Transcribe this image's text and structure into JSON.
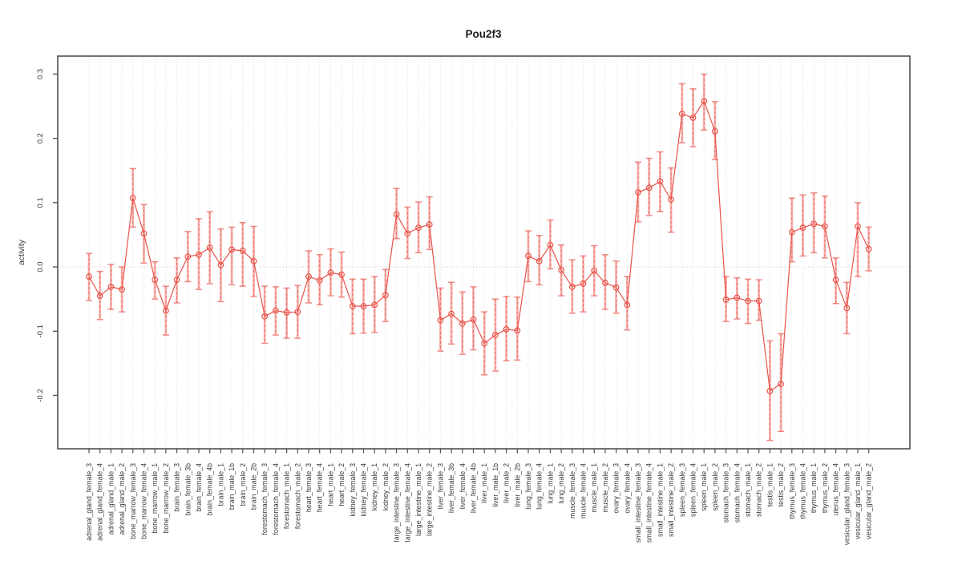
{
  "chart_data": {
    "type": "line",
    "title": "Pou2f3",
    "xlabel": "",
    "ylabel": "activity",
    "legend": "none",
    "grid": "vertical-dotted-per-category",
    "zero_line": true,
    "point_marker": "open-circle",
    "error_bars": true,
    "x_tick_rotation": 90,
    "ylim": [
      -0.283,
      0.328
    ],
    "ytick_values": [
      0.3,
      0.2,
      0.1,
      0.0,
      -0.1,
      -0.2
    ],
    "ytick_labels": [
      "0.3",
      "0.2",
      "0.1",
      "0.0",
      "-0.1",
      "-0.2"
    ],
    "colors": {
      "series": "#e8534a",
      "error_bar_fill": "#f6a9a4",
      "error_bar_cap": "#ef8a84",
      "grid": "#dbdbdb",
      "zero_line": "#c9c9c9",
      "axis": "#4f4f4f",
      "text": "#3c3c3c"
    },
    "categories": [
      "adrenal_gland_female_3",
      "adrenal_gland_female_4",
      "adrenal_gland_male_1",
      "adrenal_gland_male_2",
      "bone_marrow_female_3",
      "bone_marrow_female_4",
      "bone_marrow_male_1",
      "bone_marrow_male_2",
      "brain_female_3",
      "brain_female_3b",
      "brain_female_4",
      "brain_female_4b",
      "brain_male_1",
      "brain_male_1b",
      "brain_male_2",
      "brain_male_2b",
      "forestomach_female_3",
      "forestomach_female_4",
      "forestomach_male_1",
      "forestomach_male_2",
      "heart_female_3",
      "heart_female_4",
      "heart_male_1",
      "heart_male_2",
      "kidney_female_3",
      "kidney_female_4",
      "kidney_male_1",
      "kidney_male_2",
      "large_intestine_female_3",
      "large_intestine_female_4",
      "large_intestine_male_1",
      "large_intestine_male_2",
      "liver_female_3",
      "liver_female_3b",
      "liver_female_4",
      "liver_female_4b",
      "liver_male_1",
      "liver_male_1b",
      "liver_male_2",
      "liver_male_2b",
      "lung_female_3",
      "lung_female_4",
      "lung_male_1",
      "lung_male_2",
      "muscle_female_3",
      "muscle_female_4",
      "muscle_male_1",
      "muscle_male_2",
      "ovary_female_3",
      "ovary_female_4",
      "small_intestine_female_3",
      "small_intestine_female_4",
      "small_intestine_male_1",
      "small_intestine_male_2",
      "spleen_female_3",
      "spleen_female_4",
      "spleen_male_1",
      "spleen_male_2",
      "stomach_female_3",
      "stomach_female_4",
      "stomach_male_1",
      "stomach_male_2",
      "testis_male_1",
      "testis_male_2",
      "thymus_female_3",
      "thymus_female_4",
      "thymus_male_1",
      "thymus_male_2",
      "uterus_female_4",
      "vesicular_gland_female_3",
      "vesicular_gland_male_1",
      "vesicular_gland_male_2"
    ],
    "values": [
      -0.015,
      -0.045,
      -0.031,
      -0.035,
      0.107,
      0.052,
      -0.02,
      -0.068,
      -0.02,
      0.016,
      0.019,
      0.03,
      0.003,
      0.027,
      0.025,
      0.009,
      -0.077,
      -0.068,
      -0.071,
      -0.07,
      -0.015,
      -0.021,
      -0.009,
      -0.012,
      -0.061,
      -0.061,
      -0.059,
      -0.044,
      0.082,
      0.052,
      0.061,
      0.066,
      -0.083,
      -0.073,
      -0.088,
      -0.082,
      -0.119,
      -0.106,
      -0.097,
      -0.099,
      0.017,
      0.009,
      0.034,
      -0.005,
      -0.031,
      -0.026,
      -0.006,
      -0.025,
      -0.032,
      -0.059,
      0.116,
      0.123,
      0.133,
      0.105,
      0.238,
      0.232,
      0.258,
      0.211,
      -0.051,
      -0.048,
      -0.053,
      -0.053,
      -0.193,
      -0.182,
      0.054,
      0.061,
      0.067,
      0.063,
      -0.02,
      -0.064,
      0.063,
      0.028
    ],
    "err_low": [
      -0.052,
      -0.082,
      -0.066,
      -0.07,
      0.062,
      0.006,
      -0.05,
      -0.106,
      -0.056,
      -0.023,
      -0.035,
      -0.026,
      -0.054,
      -0.028,
      -0.03,
      -0.046,
      -0.119,
      -0.106,
      -0.111,
      -0.111,
      -0.056,
      -0.059,
      -0.045,
      -0.047,
      -0.104,
      -0.103,
      -0.102,
      -0.085,
      0.044,
      0.013,
      0.022,
      0.027,
      -0.131,
      -0.12,
      -0.136,
      -0.129,
      -0.168,
      -0.162,
      -0.146,
      -0.145,
      -0.023,
      -0.028,
      -0.003,
      -0.045,
      -0.072,
      -0.07,
      -0.045,
      -0.066,
      -0.072,
      -0.098,
      0.07,
      0.08,
      0.086,
      0.054,
      0.193,
      0.187,
      0.213,
      0.167,
      -0.085,
      -0.081,
      -0.088,
      -0.083,
      -0.27,
      -0.256,
      0.008,
      0.017,
      0.022,
      0.014,
      -0.057,
      -0.104,
      -0.015,
      -0.006
    ],
    "err_high": [
      0.021,
      -0.007,
      0.004,
      0.0,
      0.153,
      0.097,
      0.008,
      -0.03,
      0.014,
      0.055,
      0.075,
      0.086,
      0.059,
      0.062,
      0.069,
      0.063,
      -0.03,
      -0.031,
      -0.033,
      -0.029,
      0.025,
      0.019,
      0.028,
      0.023,
      -0.019,
      -0.019,
      -0.015,
      -0.004,
      0.122,
      0.093,
      0.101,
      0.109,
      -0.033,
      -0.024,
      -0.039,
      -0.031,
      -0.07,
      -0.05,
      -0.046,
      -0.047,
      0.056,
      0.049,
      0.073,
      0.034,
      0.011,
      0.017,
      0.033,
      0.019,
      0.009,
      -0.015,
      0.163,
      0.169,
      0.179,
      0.154,
      0.285,
      0.277,
      0.3,
      0.257,
      -0.015,
      -0.017,
      -0.019,
      -0.02,
      -0.115,
      -0.104,
      0.107,
      0.112,
      0.115,
      0.11,
      0.014,
      -0.024,
      0.1,
      0.062
    ]
  }
}
